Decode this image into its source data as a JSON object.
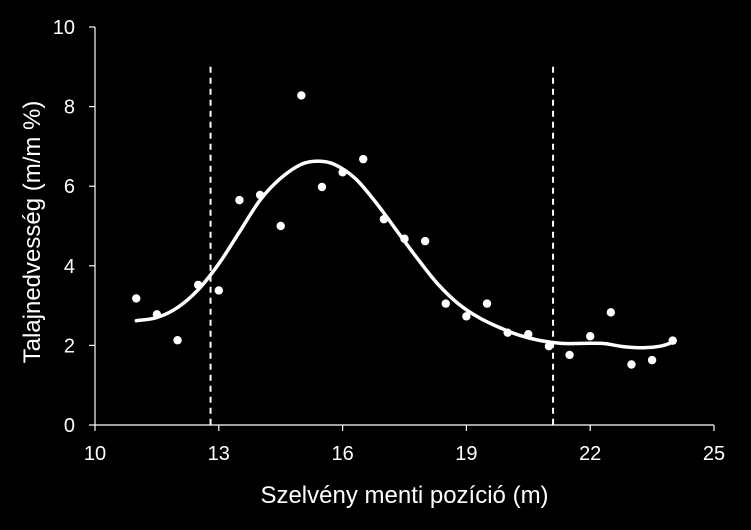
{
  "chart_data": {
    "type": "scatter",
    "title": "",
    "xlabel": "Szelvény menti pozíció (m)",
    "ylabel": "Talajnedvesség (m/m %)",
    "xlim": [
      10,
      25
    ],
    "ylim": [
      0,
      10
    ],
    "x_ticks": [
      10,
      13,
      16,
      19,
      22,
      25
    ],
    "y_ticks": [
      0,
      2,
      4,
      6,
      8,
      10
    ],
    "grid": false,
    "legend": "none",
    "colors": {
      "background": "#000000",
      "foreground": "#ffffff"
    },
    "series": [
      {
        "type": "scatter",
        "points": [
          [
            11.0,
            3.18
          ],
          [
            11.5,
            2.78
          ],
          [
            12.0,
            2.13
          ],
          [
            12.5,
            3.52
          ],
          [
            13.0,
            3.38
          ],
          [
            13.5,
            5.65
          ],
          [
            14.0,
            5.78
          ],
          [
            14.5,
            5.0
          ],
          [
            15.0,
            8.28
          ],
          [
            15.5,
            5.98
          ],
          [
            16.0,
            6.35
          ],
          [
            16.5,
            6.68
          ],
          [
            17.0,
            5.17
          ],
          [
            17.5,
            4.68
          ],
          [
            18.0,
            4.62
          ],
          [
            18.5,
            3.05
          ],
          [
            19.0,
            2.73
          ],
          [
            19.5,
            3.05
          ],
          [
            20.0,
            2.32
          ],
          [
            20.5,
            2.28
          ],
          [
            21.0,
            1.98
          ],
          [
            21.5,
            1.76
          ],
          [
            22.0,
            2.23
          ],
          [
            22.5,
            2.83
          ],
          [
            23.0,
            1.52
          ],
          [
            23.5,
            1.63
          ],
          [
            24.0,
            2.12
          ]
        ]
      },
      {
        "type": "line",
        "smooth": true,
        "points": [
          [
            11.0,
            2.62
          ],
          [
            11.5,
            2.7
          ],
          [
            12.0,
            2.95
          ],
          [
            12.5,
            3.4
          ],
          [
            13.0,
            4.05
          ],
          [
            13.5,
            4.85
          ],
          [
            14.0,
            5.65
          ],
          [
            14.5,
            6.2
          ],
          [
            15.0,
            6.55
          ],
          [
            15.4,
            6.63
          ],
          [
            15.8,
            6.55
          ],
          [
            16.3,
            6.2
          ],
          [
            16.8,
            5.6
          ],
          [
            17.3,
            4.9
          ],
          [
            17.8,
            4.2
          ],
          [
            18.3,
            3.55
          ],
          [
            18.8,
            3.05
          ],
          [
            19.3,
            2.7
          ],
          [
            19.8,
            2.45
          ],
          [
            20.3,
            2.25
          ],
          [
            20.8,
            2.12
          ],
          [
            21.3,
            2.05
          ],
          [
            21.8,
            2.05
          ],
          [
            22.3,
            2.05
          ],
          [
            22.8,
            1.97
          ],
          [
            23.3,
            1.94
          ],
          [
            23.7,
            1.98
          ],
          [
            24.0,
            2.08
          ]
        ]
      }
    ],
    "reference_lines": [
      {
        "orientation": "vertical",
        "x": 12.8,
        "style": "dashed"
      },
      {
        "orientation": "vertical",
        "x": 21.1,
        "style": "dashed"
      }
    ]
  }
}
